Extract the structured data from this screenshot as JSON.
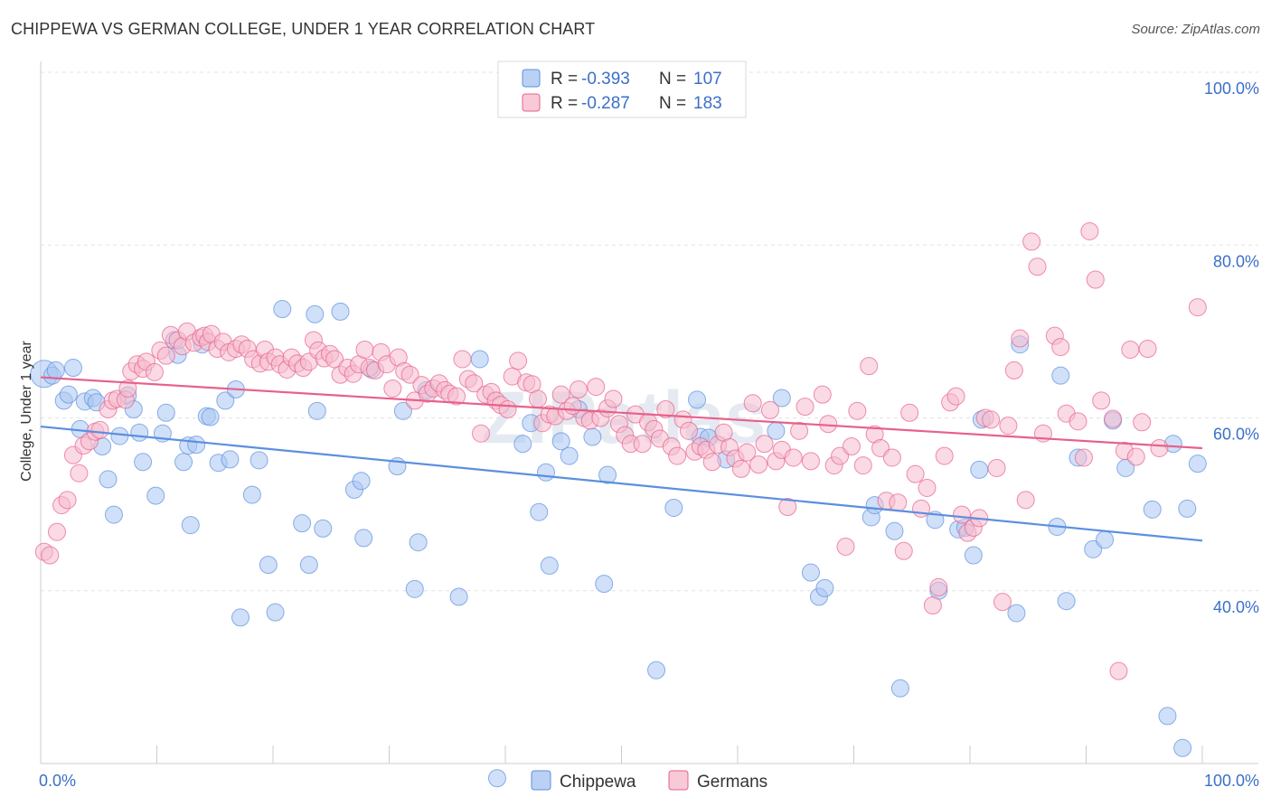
{
  "header": {
    "title": "CHIPPEWA VS GERMAN COLLEGE, UNDER 1 YEAR CORRELATION CHART",
    "source": "Source: ZipAtlas.com"
  },
  "legend": {
    "rows": [
      {
        "r_label": "R =",
        "r_value": "-0.393",
        "n_label": "N =",
        "n_value": "107",
        "color": "#5b8fe0"
      },
      {
        "r_label": "R =",
        "r_value": "-0.287",
        "n_label": "N =",
        "n_value": "183",
        "color": "#f08aa8"
      }
    ]
  },
  "watermark": "ZIPatlas",
  "chart_data": {
    "type": "scatter",
    "ylabel": "College, Under 1 year",
    "x_tick_labels": [
      "0.0%",
      "100.0%"
    ],
    "y_tick_labels": [
      "40.0%",
      "60.0%",
      "80.0%",
      "100.0%"
    ],
    "xlim": [
      0,
      100
    ],
    "ylim": [
      20,
      100
    ],
    "grid": true,
    "legend_position": "top-center",
    "series": [
      {
        "name": "Chippewa",
        "color": "#5b8fe0",
        "fill": "#a9c6f2",
        "trend": {
          "x": [
            0,
            100
          ],
          "y": [
            59.0,
            45.8
          ]
        },
        "points": [
          [
            0.3,
            65.1
          ],
          [
            1.0,
            64.9
          ],
          [
            1.3,
            65.5
          ],
          [
            2.0,
            62.0
          ],
          [
            2.4,
            62.7
          ],
          [
            2.8,
            65.8
          ],
          [
            3.4,
            58.7
          ],
          [
            3.8,
            61.9
          ],
          [
            4.5,
            62.3
          ],
          [
            4.8,
            61.8
          ],
          [
            5.3,
            56.7
          ],
          [
            5.8,
            52.9
          ],
          [
            6.3,
            48.8
          ],
          [
            6.8,
            57.9
          ],
          [
            7.5,
            62.6
          ],
          [
            8.0,
            61.0
          ],
          [
            8.5,
            58.3
          ],
          [
            8.8,
            54.9
          ],
          [
            9.9,
            51.0
          ],
          [
            10.5,
            58.2
          ],
          [
            10.8,
            60.6
          ],
          [
            11.5,
            69.0
          ],
          [
            11.8,
            67.3
          ],
          [
            12.3,
            54.9
          ],
          [
            12.7,
            56.8
          ],
          [
            12.9,
            47.6
          ],
          [
            13.4,
            56.9
          ],
          [
            13.9,
            68.5
          ],
          [
            14.3,
            60.2
          ],
          [
            14.6,
            60.1
          ],
          [
            15.3,
            54.8
          ],
          [
            15.9,
            62.0
          ],
          [
            16.3,
            55.2
          ],
          [
            16.8,
            63.3
          ],
          [
            17.2,
            36.9
          ],
          [
            18.2,
            51.1
          ],
          [
            18.8,
            55.1
          ],
          [
            19.6,
            43.0
          ],
          [
            20.2,
            37.5
          ],
          [
            20.8,
            72.6
          ],
          [
            22.5,
            47.8
          ],
          [
            23.1,
            43.0
          ],
          [
            23.6,
            72.0
          ],
          [
            23.8,
            60.8
          ],
          [
            24.3,
            47.2
          ],
          [
            25.8,
            72.3
          ],
          [
            27.0,
            51.7
          ],
          [
            27.6,
            52.7
          ],
          [
            27.8,
            46.1
          ],
          [
            28.5,
            65.6
          ],
          [
            30.7,
            54.4
          ],
          [
            31.2,
            60.8
          ],
          [
            32.2,
            40.2
          ],
          [
            32.5,
            45.6
          ],
          [
            33.2,
            63.2
          ],
          [
            36.0,
            39.3
          ],
          [
            37.8,
            66.8
          ],
          [
            39.3,
            18.3
          ],
          [
            41.5,
            57.0
          ],
          [
            42.2,
            59.4
          ],
          [
            42.9,
            49.1
          ],
          [
            43.5,
            53.7
          ],
          [
            43.8,
            42.9
          ],
          [
            44.8,
            57.3
          ],
          [
            45.5,
            55.6
          ],
          [
            46.3,
            61.0
          ],
          [
            47.5,
            57.8
          ],
          [
            48.5,
            40.8
          ],
          [
            48.8,
            53.4
          ],
          [
            53.0,
            30.8
          ],
          [
            54.5,
            49.6
          ],
          [
            56.5,
            62.1
          ],
          [
            56.8,
            57.8
          ],
          [
            57.5,
            57.7
          ],
          [
            59.0,
            55.2
          ],
          [
            63.3,
            58.5
          ],
          [
            63.8,
            62.3
          ],
          [
            66.3,
            42.1
          ],
          [
            67.0,
            39.3
          ],
          [
            67.5,
            40.3
          ],
          [
            71.5,
            48.5
          ],
          [
            71.8,
            49.9
          ],
          [
            73.5,
            46.9
          ],
          [
            74.0,
            28.7
          ],
          [
            77.0,
            48.2
          ],
          [
            77.3,
            40.0
          ],
          [
            79.0,
            47.1
          ],
          [
            79.6,
            47.3
          ],
          [
            80.3,
            44.1
          ],
          [
            80.8,
            54.0
          ],
          [
            81.0,
            59.8
          ],
          [
            84.0,
            37.4
          ],
          [
            84.3,
            68.5
          ],
          [
            87.5,
            47.4
          ],
          [
            87.8,
            64.9
          ],
          [
            88.3,
            38.8
          ],
          [
            89.3,
            55.4
          ],
          [
            90.6,
            44.8
          ],
          [
            91.6,
            45.9
          ],
          [
            92.3,
            59.7
          ],
          [
            93.4,
            54.2
          ],
          [
            95.7,
            49.4
          ],
          [
            97.0,
            25.5
          ],
          [
            97.5,
            57.0
          ],
          [
            98.7,
            49.5
          ],
          [
            99.6,
            54.7
          ],
          [
            98.3,
            21.8
          ]
        ]
      },
      {
        "name": "Germans",
        "color": "#e8608a",
        "fill": "#f6bccd",
        "trend": {
          "x": [
            0,
            100
          ],
          "y": [
            64.7,
            56.5
          ]
        },
        "points": [
          [
            0.3,
            44.5
          ],
          [
            0.8,
            44.1
          ],
          [
            1.4,
            46.8
          ],
          [
            1.8,
            49.9
          ],
          [
            2.3,
            50.5
          ],
          [
            2.8,
            55.7
          ],
          [
            3.3,
            53.6
          ],
          [
            3.7,
            56.8
          ],
          [
            4.2,
            57.3
          ],
          [
            4.7,
            58.4
          ],
          [
            5.1,
            58.6
          ],
          [
            5.8,
            61.0
          ],
          [
            6.2,
            62.0
          ],
          [
            6.6,
            62.2
          ],
          [
            7.3,
            62.1
          ],
          [
            7.5,
            63.4
          ],
          [
            7.8,
            65.4
          ],
          [
            8.3,
            66.2
          ],
          [
            8.8,
            65.7
          ],
          [
            9.1,
            66.5
          ],
          [
            9.8,
            65.3
          ],
          [
            10.3,
            67.8
          ],
          [
            10.8,
            67.2
          ],
          [
            11.2,
            69.6
          ],
          [
            11.8,
            69.0
          ],
          [
            12.2,
            68.3
          ],
          [
            12.6,
            70.0
          ],
          [
            13.2,
            68.7
          ],
          [
            13.8,
            69.3
          ],
          [
            14.1,
            69.5
          ],
          [
            14.4,
            68.8
          ],
          [
            14.7,
            69.7
          ],
          [
            15.2,
            68.0
          ],
          [
            15.7,
            68.8
          ],
          [
            16.2,
            67.6
          ],
          [
            16.8,
            68.0
          ],
          [
            17.3,
            68.5
          ],
          [
            17.8,
            68.0
          ],
          [
            18.3,
            66.8
          ],
          [
            18.9,
            66.3
          ],
          [
            19.3,
            67.9
          ],
          [
            19.6,
            66.5
          ],
          [
            20.2,
            67.0
          ],
          [
            20.6,
            66.2
          ],
          [
            21.2,
            65.6
          ],
          [
            21.6,
            67.0
          ],
          [
            22.1,
            66.3
          ],
          [
            22.6,
            65.8
          ],
          [
            23.1,
            66.5
          ],
          [
            23.5,
            69.0
          ],
          [
            23.9,
            67.8
          ],
          [
            24.4,
            66.9
          ],
          [
            24.9,
            67.4
          ],
          [
            25.3,
            66.8
          ],
          [
            25.8,
            65.0
          ],
          [
            26.4,
            65.8
          ],
          [
            26.9,
            65.1
          ],
          [
            27.4,
            66.2
          ],
          [
            27.9,
            67.9
          ],
          [
            28.3,
            65.8
          ],
          [
            28.8,
            65.5
          ],
          [
            29.3,
            67.6
          ],
          [
            29.8,
            66.2
          ],
          [
            30.3,
            63.4
          ],
          [
            30.8,
            67.0
          ],
          [
            31.3,
            65.4
          ],
          [
            31.8,
            65.0
          ],
          [
            32.2,
            62.0
          ],
          [
            32.8,
            63.8
          ],
          [
            33.3,
            62.8
          ],
          [
            33.8,
            63.4
          ],
          [
            34.3,
            64.0
          ],
          [
            34.8,
            63.2
          ],
          [
            35.2,
            62.8
          ],
          [
            35.8,
            62.5
          ],
          [
            36.3,
            66.8
          ],
          [
            36.8,
            64.5
          ],
          [
            37.3,
            64.0
          ],
          [
            37.9,
            58.2
          ],
          [
            38.3,
            62.7
          ],
          [
            38.8,
            63.0
          ],
          [
            39.2,
            62.0
          ],
          [
            39.6,
            61.5
          ],
          [
            40.2,
            61.0
          ],
          [
            40.6,
            64.8
          ],
          [
            41.1,
            66.6
          ],
          [
            41.8,
            64.1
          ],
          [
            42.3,
            63.9
          ],
          [
            42.8,
            62.2
          ],
          [
            43.2,
            59.4
          ],
          [
            43.8,
            60.4
          ],
          [
            44.3,
            60.2
          ],
          [
            44.8,
            62.7
          ],
          [
            45.3,
            60.8
          ],
          [
            45.8,
            61.4
          ],
          [
            46.3,
            63.3
          ],
          [
            46.8,
            60.0
          ],
          [
            47.3,
            59.7
          ],
          [
            47.8,
            63.6
          ],
          [
            48.2,
            60.0
          ],
          [
            48.8,
            61.1
          ],
          [
            49.3,
            62.2
          ],
          [
            49.8,
            59.3
          ],
          [
            50.3,
            58.0
          ],
          [
            50.8,
            57.0
          ],
          [
            51.2,
            60.4
          ],
          [
            51.8,
            57.0
          ],
          [
            52.3,
            59.5
          ],
          [
            52.8,
            58.7
          ],
          [
            53.3,
            57.6
          ],
          [
            53.8,
            61.0
          ],
          [
            54.3,
            56.7
          ],
          [
            54.8,
            55.6
          ],
          [
            55.3,
            59.8
          ],
          [
            55.8,
            58.5
          ],
          [
            56.3,
            56.1
          ],
          [
            56.8,
            56.7
          ],
          [
            57.3,
            56.3
          ],
          [
            57.8,
            54.9
          ],
          [
            58.3,
            56.9
          ],
          [
            58.8,
            58.3
          ],
          [
            59.3,
            56.6
          ],
          [
            59.8,
            55.3
          ],
          [
            60.3,
            54.1
          ],
          [
            60.8,
            56.0
          ],
          [
            61.3,
            61.7
          ],
          [
            61.8,
            54.6
          ],
          [
            62.3,
            57.0
          ],
          [
            62.8,
            60.9
          ],
          [
            63.3,
            55.0
          ],
          [
            63.8,
            56.3
          ],
          [
            64.3,
            49.7
          ],
          [
            64.8,
            55.4
          ],
          [
            65.3,
            58.5
          ],
          [
            65.8,
            61.3
          ],
          [
            66.3,
            55.0
          ],
          [
            67.3,
            62.7
          ],
          [
            67.8,
            59.3
          ],
          [
            68.3,
            54.5
          ],
          [
            68.8,
            55.6
          ],
          [
            69.3,
            45.1
          ],
          [
            69.8,
            56.7
          ],
          [
            70.3,
            60.8
          ],
          [
            70.8,
            54.5
          ],
          [
            71.3,
            66.0
          ],
          [
            71.8,
            58.1
          ],
          [
            72.3,
            56.5
          ],
          [
            72.8,
            50.4
          ],
          [
            73.3,
            55.4
          ],
          [
            73.8,
            50.2
          ],
          [
            74.3,
            44.6
          ],
          [
            74.8,
            60.6
          ],
          [
            75.3,
            53.5
          ],
          [
            75.8,
            49.5
          ],
          [
            76.3,
            51.9
          ],
          [
            76.8,
            38.3
          ],
          [
            77.3,
            40.4
          ],
          [
            77.8,
            55.6
          ],
          [
            78.3,
            61.8
          ],
          [
            78.8,
            62.5
          ],
          [
            79.3,
            48.8
          ],
          [
            79.8,
            46.7
          ],
          [
            80.3,
            47.3
          ],
          [
            80.8,
            48.4
          ],
          [
            81.3,
            60.0
          ],
          [
            81.8,
            59.8
          ],
          [
            82.3,
            54.2
          ],
          [
            82.8,
            38.7
          ],
          [
            83.3,
            59.1
          ],
          [
            83.8,
            65.5
          ],
          [
            84.3,
            69.2
          ],
          [
            84.8,
            50.5
          ],
          [
            85.3,
            80.4
          ],
          [
            85.8,
            77.5
          ],
          [
            86.3,
            58.2
          ],
          [
            87.3,
            69.5
          ],
          [
            87.8,
            68.2
          ],
          [
            88.3,
            60.5
          ],
          [
            89.3,
            59.6
          ],
          [
            89.8,
            55.4
          ],
          [
            90.3,
            81.6
          ],
          [
            90.8,
            76.0
          ],
          [
            91.3,
            62.0
          ],
          [
            92.3,
            59.9
          ],
          [
            92.8,
            30.7
          ],
          [
            93.3,
            56.2
          ],
          [
            93.8,
            67.9
          ],
          [
            94.3,
            55.5
          ],
          [
            94.8,
            59.5
          ],
          [
            95.3,
            68.0
          ],
          [
            96.3,
            56.5
          ],
          [
            99.6,
            72.8
          ]
        ]
      }
    ]
  },
  "bottom_legend": [
    {
      "label": "Chippewa",
      "color": "#5b8fe0"
    },
    {
      "label": "Germans",
      "color": "#e8608a"
    }
  ]
}
